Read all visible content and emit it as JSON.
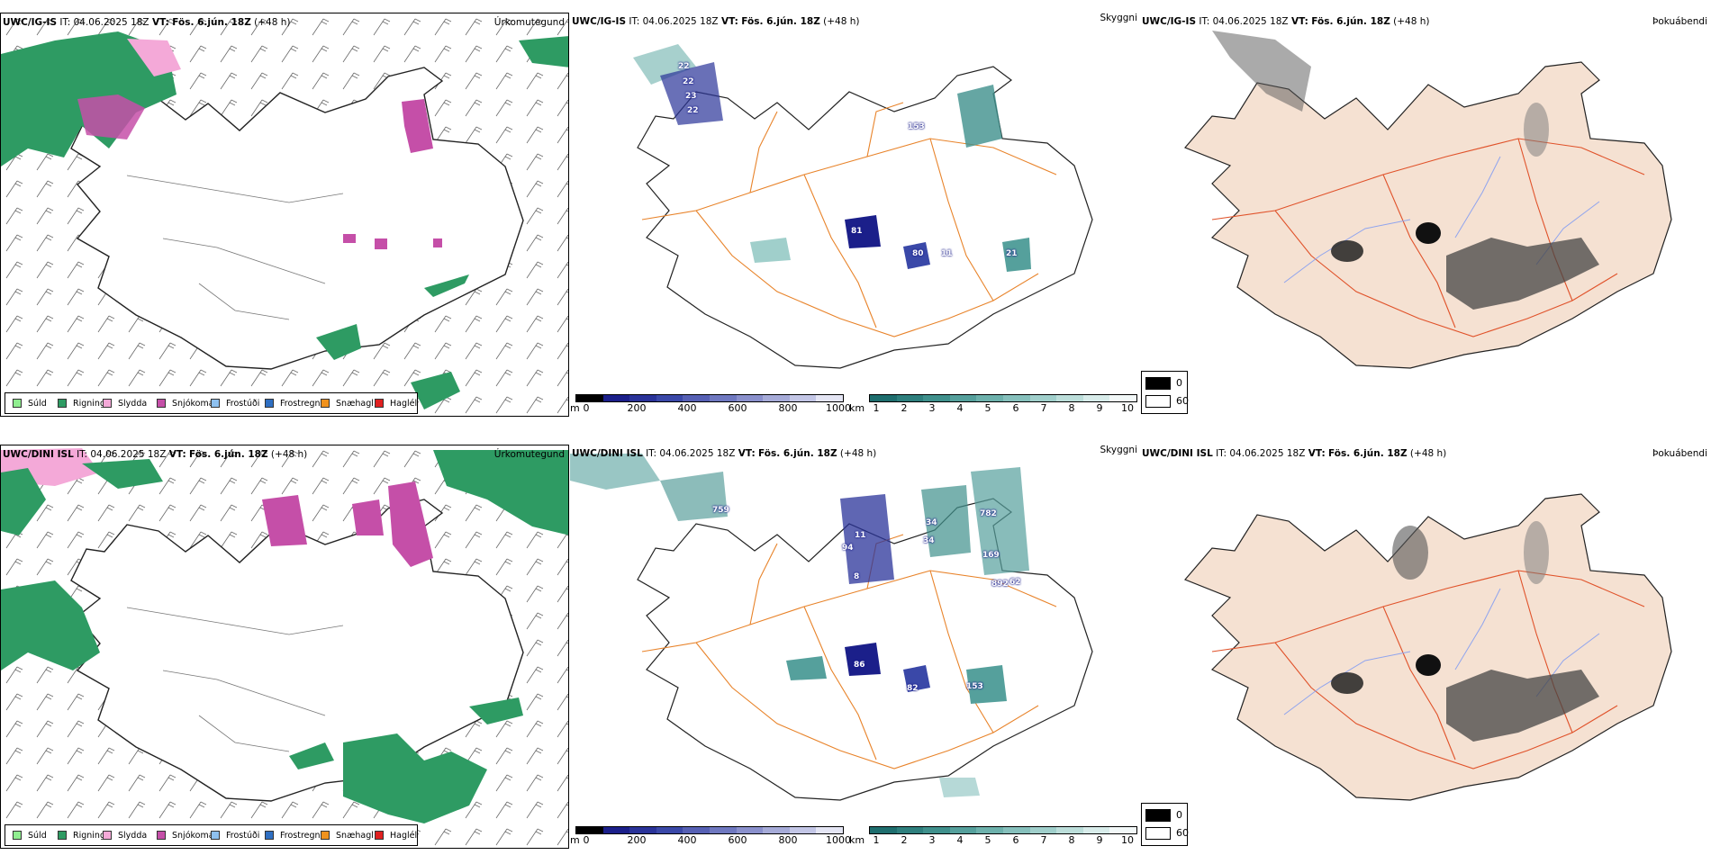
{
  "rows": [
    {
      "model": "UWC/IG-IS",
      "precip": {
        "model": "UWC/IG-IS",
        "it_label": "IT:",
        "it_value": "04.06.2025 18Z",
        "vt_label": "VT:",
        "vt_value": "Fös. 6.jún. 18Z",
        "lead": "(+48 h)",
        "right_label": "Úrkomutegund"
      },
      "ceiling": {
        "model": "UWC/IG-IS",
        "it_label": "IT:",
        "it_value": "04.06.2025 18Z",
        "vt_label": "VT:",
        "vt_value": "Fös. 6.jún. 18Z",
        "lead": "(+48 h)",
        "right_label": "Skyggni"
      },
      "cloud": {
        "model": "UWC/IG-IS",
        "it_label": "IT:",
        "it_value": "04.06.2025 18Z",
        "vt_label": "VT:",
        "vt_value": "Fös. 6.jún. 18Z",
        "lead": "(+48 h)",
        "right_label": "Þokuábendi"
      },
      "ceiling_values": [
        "22",
        "22",
        "23",
        "22",
        "153",
        "81",
        "80",
        "11",
        "21"
      ]
    },
    {
      "model": "UWC/DINI ISL",
      "precip": {
        "model": "UWC/DINI ISL",
        "it_label": "IT:",
        "it_value": "04.06.2025 18Z",
        "vt_label": "VT:",
        "vt_value": "Fös. 6.jún. 18Z",
        "lead": "(+48 h)",
        "right_label": "Úrkomutegund"
      },
      "ceiling": {
        "model": "UWC/DINI ISL",
        "it_label": "IT:",
        "it_value": "04.06.2025 18Z",
        "vt_label": "VT:",
        "vt_value": "Fös. 6.jún. 18Z",
        "lead": "(+48 h)",
        "right_label": "Skyggni"
      },
      "cloud": {
        "model": "UWC/DINI ISL",
        "it_label": "IT:",
        "it_value": "04.06.2025 18Z",
        "vt_label": "VT:",
        "vt_value": "Fös. 6.jún. 18Z",
        "lead": "(+48 h)",
        "right_label": "Þokuábendi"
      },
      "ceiling_values": [
        "759",
        "94",
        "11",
        "8",
        "34",
        "34",
        "782",
        "169",
        "892",
        "62",
        "86",
        "82",
        "153"
      ]
    }
  ],
  "precip_legend": [
    {
      "label": "Súld",
      "color": "#90ee90"
    },
    {
      "label": "Rigning",
      "color": "#2e9b63"
    },
    {
      "label": "Slydda",
      "color": "#f4a9d8"
    },
    {
      "label": "Snjókoma",
      "color": "#c54fa8"
    },
    {
      "label": "Frostúði",
      "color": "#8ec1f0"
    },
    {
      "label": "Frostregn",
      "color": "#2f6fc2"
    },
    {
      "label": "Snæhagl",
      "color": "#f0921e"
    },
    {
      "label": "Haglél",
      "color": "#e02020"
    }
  ],
  "ceiling_scale": {
    "unit": "m",
    "ticks": [
      "0",
      "200",
      "400",
      "600",
      "800",
      "1000"
    ],
    "colors": [
      "#000000",
      "#1b1f8a",
      "#2a3399",
      "#3a48a8",
      "#5660b4",
      "#6f78c0",
      "#8a90cc",
      "#a6abd8",
      "#c3c6e6",
      "#e4e5f4"
    ]
  },
  "visibility_scale": {
    "unit": "km",
    "ticks": [
      "1",
      "2",
      "3",
      "4",
      "5",
      "6",
      "7",
      "8",
      "9",
      "10"
    ],
    "colors": [
      "#1e6e6e",
      "#2e7f7d",
      "#3f908c",
      "#55a09c",
      "#6db1ac",
      "#86c0bc",
      "#a0cfcb",
      "#bcdeda",
      "#d8ecea",
      "#f2f8f8"
    ]
  },
  "fog_legend": {
    "high": "0",
    "low": "60"
  },
  "colors": {
    "land_fill": "#f5e1d2",
    "roads": "#e8832a",
    "rivers": "#8fa4ee",
    "cloud_roads": "#e0522a"
  }
}
